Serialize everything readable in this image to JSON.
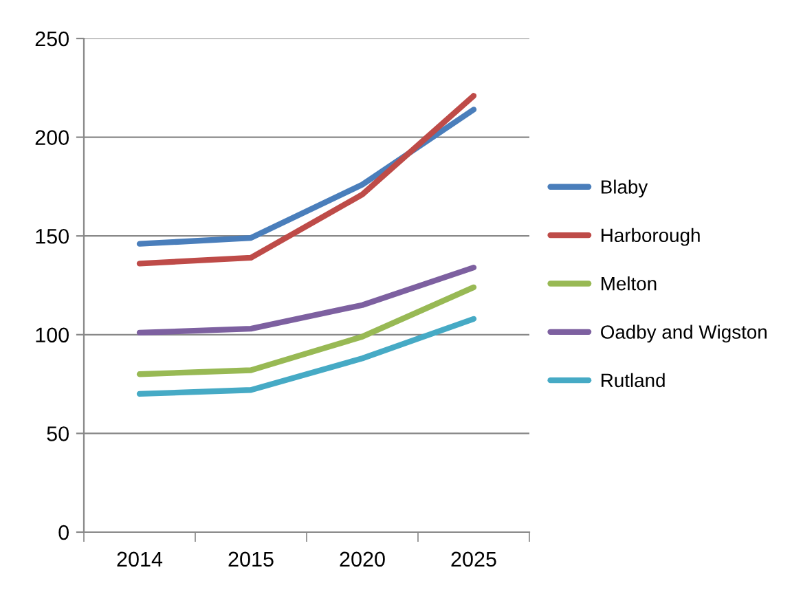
{
  "chart_data": {
    "type": "line",
    "categories": [
      "2014",
      "2015",
      "2020",
      "2025"
    ],
    "series": [
      {
        "name": "Blaby",
        "color": "#4a7ebb",
        "values": [
          146,
          149,
          176,
          214
        ]
      },
      {
        "name": "Harborough",
        "color": "#be4b48",
        "values": [
          136,
          139,
          171,
          221
        ]
      },
      {
        "name": "Melton",
        "color": "#98b954",
        "values": [
          80,
          82,
          99,
          124
        ]
      },
      {
        "name": "Oadby and Wigston",
        "color": "#7d60a0",
        "values": [
          101,
          103,
          115,
          134
        ]
      },
      {
        "name": "Rutland",
        "color": "#46aac5",
        "values": [
          70,
          72,
          88,
          108
        ]
      }
    ],
    "ylim": [
      0,
      250
    ],
    "yticks": [
      0,
      50,
      100,
      150,
      200,
      250
    ],
    "grid": "y",
    "legend": "right",
    "marker": "none",
    "line_style": "solid"
  }
}
